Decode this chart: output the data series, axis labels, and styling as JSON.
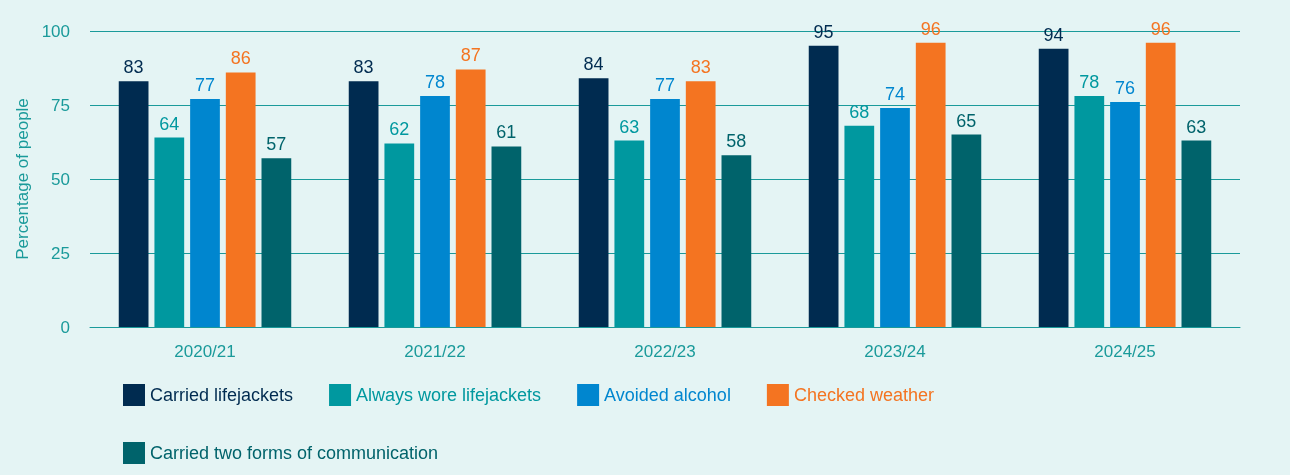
{
  "chart_data": {
    "type": "bar",
    "ylabel": "Percentage of people",
    "categories": [
      "2020/21",
      "2021/22",
      "2022/23",
      "2023/24",
      "2024/25"
    ],
    "series": [
      {
        "name": "Carried lifejackets",
        "color": "#002b50",
        "values": [
          83,
          83,
          84,
          95,
          94
        ]
      },
      {
        "name": "Always wore lifejackets",
        "color": "#00989f",
        "values": [
          64,
          62,
          63,
          68,
          78
        ]
      },
      {
        "name": "Avoided alcohol",
        "color": "#0086cf",
        "values": [
          77,
          78,
          77,
          74,
          76
        ]
      },
      {
        "name": "Checked weather",
        "color": "#f47421",
        "values": [
          86,
          87,
          83,
          96,
          96
        ]
      },
      {
        "name": "Carried two forms of communication",
        "color": "#00636b",
        "values": [
          57,
          61,
          58,
          65,
          63
        ]
      }
    ],
    "ylim": [
      0,
      100
    ],
    "yticks": [
      0,
      25,
      50,
      75,
      100
    ],
    "grid": "y",
    "legend": "bottom",
    "data_labels": true
  }
}
